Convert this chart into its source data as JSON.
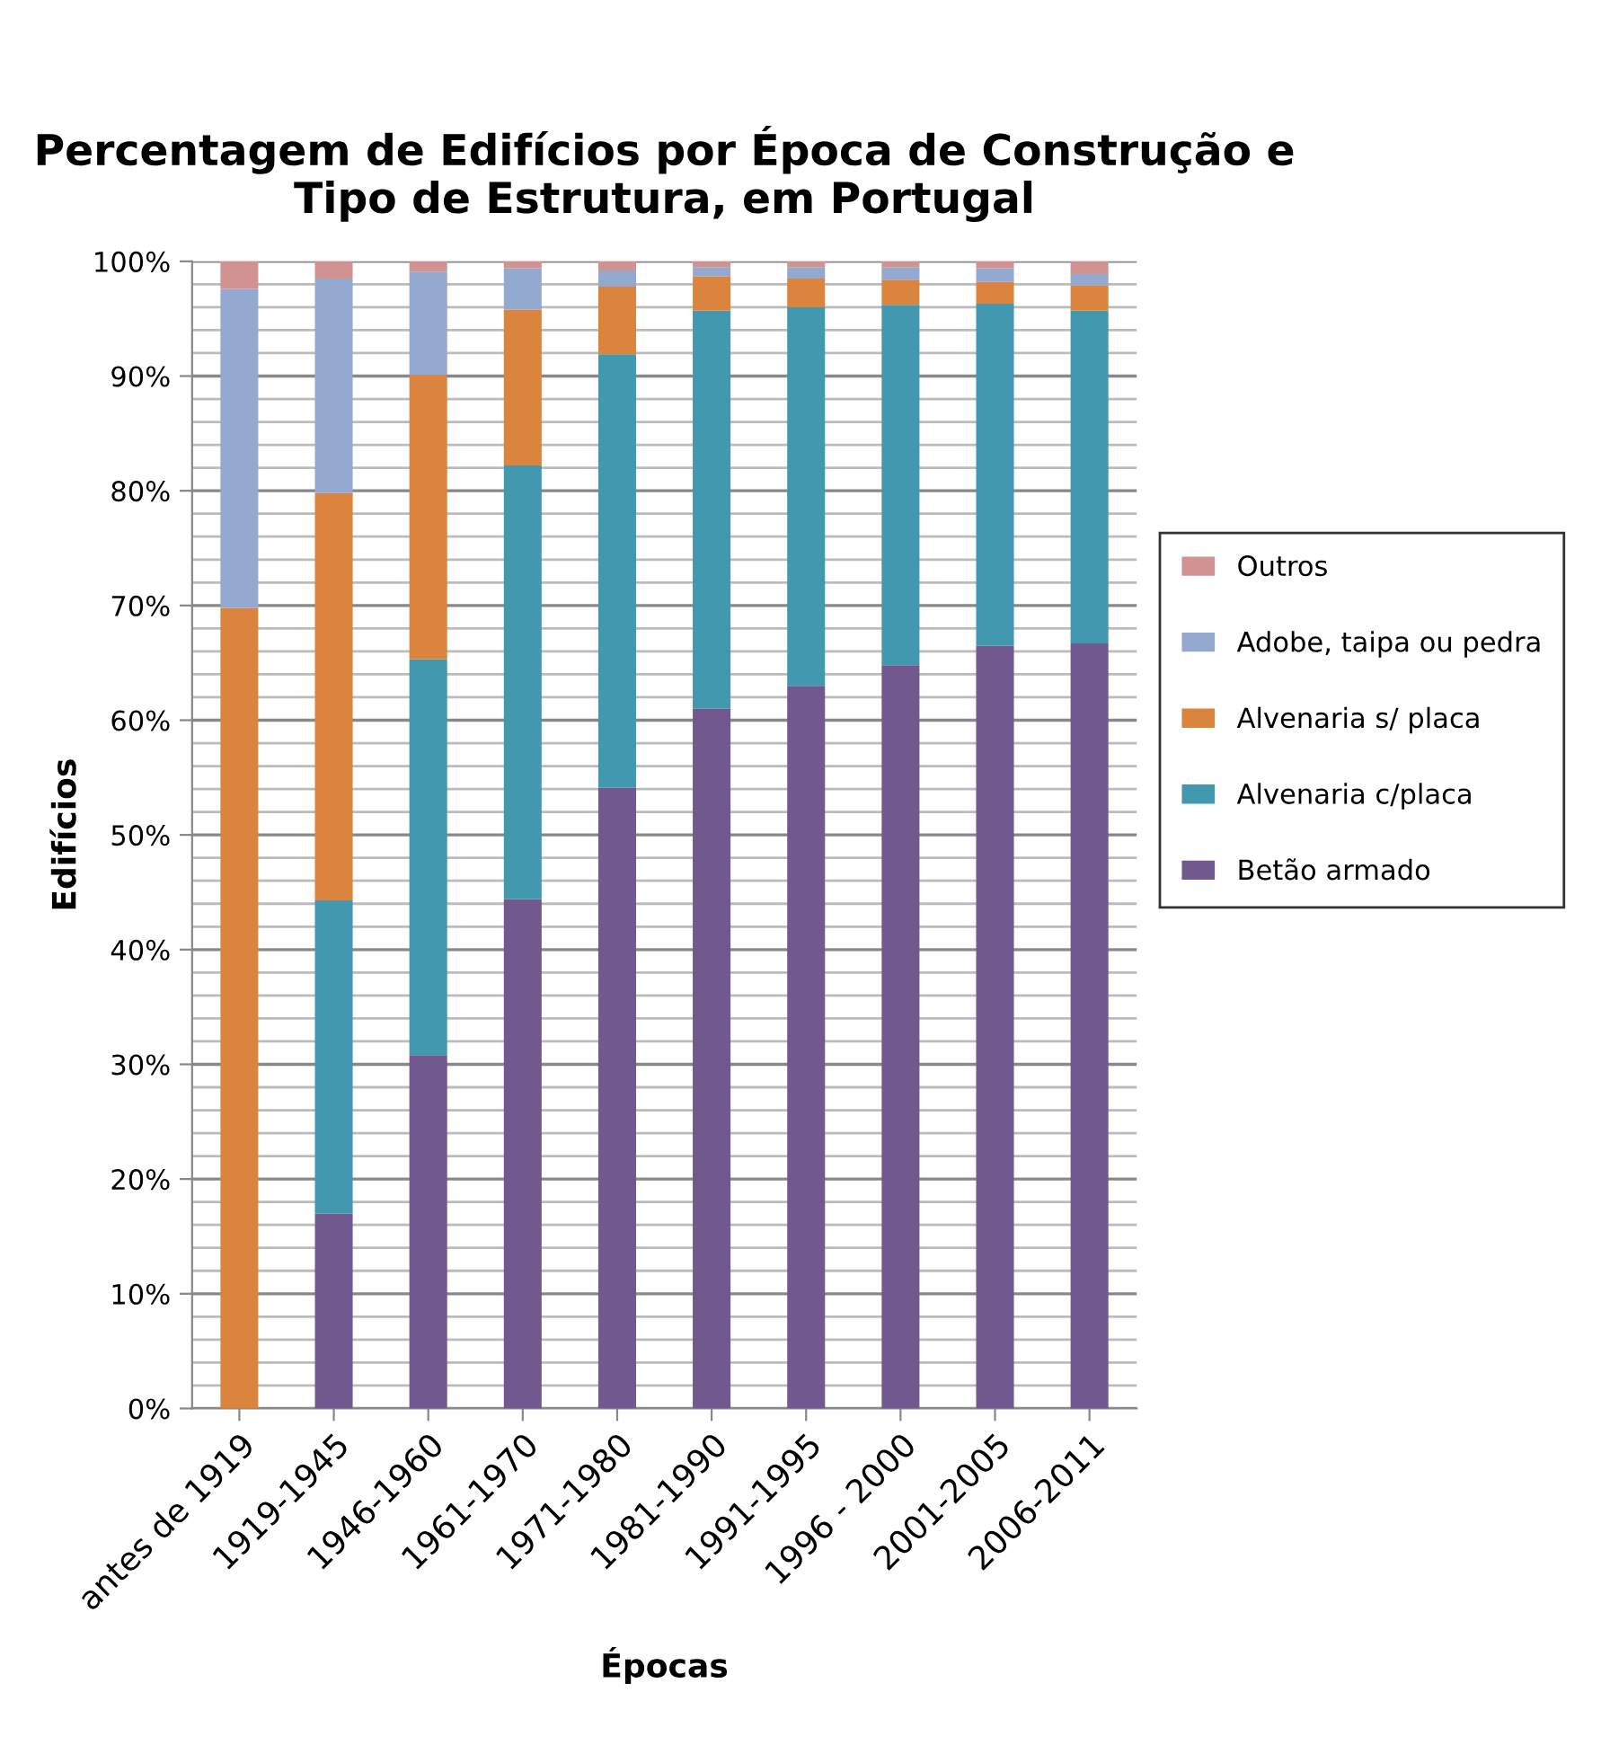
{
  "chart_data": {
    "type": "bar",
    "stacked": true,
    "title": "Percentagem de Edifícios por Época de Construção e Tipo de Estrutura, em Portugal",
    "xlabel": "Épocas",
    "ylabel": "Edifícios",
    "categories": [
      "antes de 1919",
      "1919-1945",
      "1946-1960",
      "1961-1970",
      "1971-1980",
      "1981-1990",
      "1991-1995",
      "1996 - 2000",
      "2001-2005",
      "2006-2011"
    ],
    "series": [
      {
        "name": "Betão armado",
        "color": "#71588f",
        "values": [
          0,
          17,
          30.8,
          44.4,
          54.1,
          61,
          63,
          64.8,
          66.5,
          66.7
        ]
      },
      {
        "name": "Alvenaria c/placa",
        "color": "#4198af",
        "values": [
          0,
          27.3,
          34.5,
          37.8,
          37.8,
          34.7,
          33,
          31.4,
          29.8,
          29
        ]
      },
      {
        "name": "Alvenaria s/ placa",
        "color": "#db843d",
        "values": [
          69.8,
          35.5,
          24.8,
          13.6,
          5.9,
          3,
          2.5,
          2.2,
          1.9,
          2.2
        ]
      },
      {
        "name": "Adobe, taipa ou pedra",
        "color": "#93a9cf",
        "values": [
          27.8,
          18.7,
          9,
          3.6,
          1.4,
          0.8,
          1,
          1.1,
          1.2,
          1
        ]
      },
      {
        "name": "Outros",
        "color": "#d19392",
        "values": [
          2.4,
          1.5,
          0.9,
          0.6,
          0.8,
          0.5,
          0.5,
          0.5,
          0.6,
          1.1
        ]
      }
    ],
    "ylim": [
      0,
      100
    ],
    "yticks": [
      {
        "value": 0,
        "label": "0%"
      },
      {
        "value": 2,
        "label": null
      },
      {
        "value": 4,
        "label": null
      },
      {
        "value": 6,
        "label": null
      },
      {
        "value": 8,
        "label": null
      },
      {
        "value": 10,
        "label": "10%"
      },
      {
        "value": 12,
        "label": null
      },
      {
        "value": 14,
        "label": null
      },
      {
        "value": 16,
        "label": null
      },
      {
        "value": 18,
        "label": null
      },
      {
        "value": 20,
        "label": "20%"
      },
      {
        "value": 22,
        "label": null
      },
      {
        "value": 24,
        "label": null
      },
      {
        "value": 26,
        "label": null
      },
      {
        "value": 28,
        "label": null
      },
      {
        "value": 30,
        "label": "30%"
      },
      {
        "value": 32,
        "label": null
      },
      {
        "value": 34,
        "label": null
      },
      {
        "value": 36,
        "label": null
      },
      {
        "value": 38,
        "label": null
      },
      {
        "value": 40,
        "label": "40%"
      },
      {
        "value": 42,
        "label": null
      },
      {
        "value": 44,
        "label": null
      },
      {
        "value": 46,
        "label": null
      },
      {
        "value": 48,
        "label": null
      },
      {
        "value": 50,
        "label": "50%"
      },
      {
        "value": 52,
        "label": null
      },
      {
        "value": 54,
        "label": null
      },
      {
        "value": 56,
        "label": null
      },
      {
        "value": 58,
        "label": null
      },
      {
        "value": 60,
        "label": "60%"
      },
      {
        "value": 62,
        "label": null
      },
      {
        "value": 64,
        "label": null
      },
      {
        "value": 66,
        "label": null
      },
      {
        "value": 68,
        "label": null
      },
      {
        "value": 70,
        "label": "70%"
      },
      {
        "value": 72,
        "label": null
      },
      {
        "value": 74,
        "label": null
      },
      {
        "value": 76,
        "label": null
      },
      {
        "value": 78,
        "label": null
      },
      {
        "value": 80,
        "label": "80%"
      },
      {
        "value": 82,
        "label": null
      },
      {
        "value": 84,
        "label": null
      },
      {
        "value": 86,
        "label": null
      },
      {
        "value": 88,
        "label": null
      },
      {
        "value": 90,
        "label": "90%"
      },
      {
        "value": 92,
        "label": null
      },
      {
        "value": 94,
        "label": null
      },
      {
        "value": 96,
        "label": null
      },
      {
        "value": 98,
        "label": null
      },
      {
        "value": 100,
        "label": "100%"
      }
    ],
    "grid": "y",
    "legend": "right"
  }
}
